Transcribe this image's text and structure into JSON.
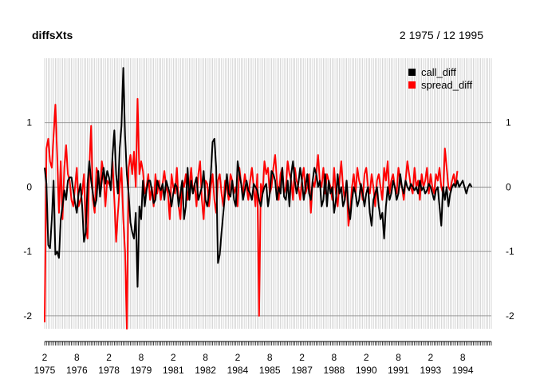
{
  "chart_data": {
    "type": "line",
    "title": "diffsXts",
    "date_range_label": "2 1975 / 12 1995",
    "xlabel": "",
    "ylabel": "",
    "x_start": "1975-02",
    "x_end": "1995-12",
    "ylim": [
      -2.2,
      2.0
    ],
    "yticks": [
      -2,
      -1,
      0,
      1
    ],
    "grid": true,
    "legend_position": "top-right",
    "colors": {
      "call_diff": "#000000",
      "spread_diff": "#ff0000",
      "grid": "#bdbdbd",
      "axis": "#808080"
    },
    "x_ticks": [
      {
        "date": "1975-02",
        "month": "2",
        "year": "1975"
      },
      {
        "date": "1976-08",
        "month": "8",
        "year": "1976"
      },
      {
        "date": "1978-02",
        "month": "2",
        "year": "1978"
      },
      {
        "date": "1979-08",
        "month": "8",
        "year": "1979"
      },
      {
        "date": "1981-02",
        "month": "2",
        "year": "1981"
      },
      {
        "date": "1982-08",
        "month": "8",
        "year": "1982"
      },
      {
        "date": "1984-02",
        "month": "2",
        "year": "1984"
      },
      {
        "date": "1985-08",
        "month": "8",
        "year": "1985"
      },
      {
        "date": "1987-02",
        "month": "2",
        "year": "1987"
      },
      {
        "date": "1988-08",
        "month": "8",
        "year": "1988"
      },
      {
        "date": "1990-02",
        "month": "2",
        "year": "1990"
      },
      {
        "date": "1991-08",
        "month": "8",
        "year": "1991"
      },
      {
        "date": "1993-02",
        "month": "2",
        "year": "1993"
      },
      {
        "date": "1994-08",
        "month": "8",
        "year": "1994"
      }
    ],
    "series": [
      {
        "name": "call_diff",
        "values": [
          0.3,
          0.05,
          -0.9,
          -0.95,
          -0.5,
          0.1,
          -1.05,
          -1.0,
          -1.1,
          -0.5,
          -0.3,
          -0.05,
          -0.2,
          0.1,
          0.15,
          0.15,
          -0.05,
          -0.25,
          -0.4,
          -0.1,
          0.05,
          -0.3,
          -0.85,
          -0.7,
          0.05,
          0.4,
          0.1,
          -0.1,
          -0.3,
          -0.2,
          0.25,
          -0.15,
          0.1,
          0.3,
          0.05,
          0.25,
          0.15,
          -0.05,
          0.5,
          0.88,
          0.2,
          -0.1,
          0.6,
          0.95,
          1.85,
          0.8,
          0.2,
          -0.1,
          -0.55,
          -0.7,
          -0.8,
          -0.4,
          -1.55,
          -0.3,
          -0.5,
          0.1,
          -0.3,
          -0.05,
          0.1,
          0.1,
          -0.05,
          -0.25,
          -0.2,
          0.1,
          0.0,
          -0.05,
          0.05,
          -0.2,
          0.1,
          0.0,
          -0.1,
          -0.3,
          -0.1,
          0.05,
          0.0,
          -0.3,
          -0.1,
          0.1,
          -0.5,
          -0.3,
          0.3,
          -0.2,
          0.1,
          -0.1,
          0.05,
          0.15,
          -0.2,
          -0.1,
          0.0,
          0.25,
          -0.2,
          -0.3,
          -0.1,
          0.2,
          0.7,
          0.75,
          0.3,
          -1.18,
          -1.05,
          -0.7,
          -0.4,
          -0.1,
          0.2,
          -0.1,
          -0.15,
          0.1,
          -0.2,
          -0.3,
          0.4,
          0.2,
          0.05,
          -0.2,
          -0.05,
          0.1,
          -0.05,
          -0.1,
          -0.2,
          0.05,
          0.0,
          -0.05,
          -0.2,
          -0.3,
          -0.1,
          0.0,
          0.05,
          -0.3,
          -0.1,
          0.25,
          0.2,
          0.1,
          -0.2,
          0.0,
          -0.1,
          0.3,
          -0.15,
          -0.2,
          0.1,
          -0.3,
          0.2,
          0.4,
          0.1,
          -0.1,
          0.05,
          0.3,
          0.1,
          -0.2,
          0.0,
          0.2,
          -0.1,
          -0.2,
          0.1,
          0.3,
          0.2,
          0.0,
          0.1,
          -0.3,
          -0.2,
          0.2,
          -0.3,
          0.1,
          -0.1,
          0.0,
          -0.4,
          -0.2,
          0.2,
          -0.1,
          0.0,
          -0.3,
          -0.2,
          0.1,
          -0.3,
          -0.5,
          -0.2,
          0.0,
          -0.1,
          -0.3,
          -0.2,
          0.05,
          -0.1,
          -0.3,
          -0.1,
          0.0,
          -0.4,
          -0.6,
          -0.2,
          -0.1,
          0.0,
          -0.3,
          -0.5,
          -0.4,
          -0.8,
          -0.3,
          0.0,
          -0.2,
          -0.1,
          0.1,
          0.0,
          -0.2,
          -0.1,
          0.2,
          0.0,
          -0.1,
          0.1,
          0.0,
          -0.05,
          0.05,
          0.0,
          -0.05,
          0.0,
          -0.1,
          0.1,
          -0.05,
          0.0,
          -0.1,
          -0.05,
          0.05,
          0.0,
          -0.1,
          -0.2,
          -0.05,
          0.0,
          -0.3,
          -0.6,
          0.0,
          -0.2,
          0.0,
          -0.3,
          -0.1,
          0.0,
          0.05,
          0.0,
          0.1,
          0.0,
          0.05,
          0.1,
          0.0,
          -0.1,
          0.0,
          0.05,
          0.0
        ],
        "color": "#000000"
      },
      {
        "name": "spread_diff",
        "values": [
          -2.1,
          0.6,
          0.75,
          0.4,
          0.3,
          0.8,
          1.28,
          0.5,
          -0.4,
          0.4,
          -0.5,
          0.3,
          0.65,
          0.2,
          0.1,
          -0.2,
          -0.3,
          0.0,
          0.3,
          -0.3,
          -0.2,
          -0.1,
          0.2,
          -0.6,
          -0.8,
          0.3,
          0.95,
          -0.2,
          -0.4,
          0.3,
          0.2,
          -0.1,
          0.4,
          0.2,
          -0.3,
          0.1,
          0.05,
          0.0,
          0.4,
          -0.2,
          -0.85,
          -0.4,
          0.0,
          0.3,
          -0.5,
          -1.0,
          -2.2,
          0.3,
          0.5,
          0.2,
          0.55,
          0.0,
          1.37,
          0.2,
          0.4,
          0.25,
          -0.1,
          0.0,
          0.2,
          -0.2,
          0.0,
          -0.3,
          0.2,
          -0.1,
          0.1,
          -0.2,
          0.05,
          0.25,
          0.0,
          -0.1,
          -0.5,
          0.2,
          0.0,
          -0.1,
          0.3,
          -0.3,
          -0.5,
          0.1,
          0.0,
          0.2,
          -0.2,
          0.0,
          0.3,
          -0.1,
          0.05,
          -0.3,
          0.2,
          0.4,
          -0.2,
          -0.5,
          0.1,
          0.05,
          -0.3,
          0.0,
          0.2,
          -0.2,
          -0.4,
          0.1,
          0.2,
          -0.1,
          -0.3,
          0.1,
          0.0,
          -0.2,
          0.2,
          0.1,
          -0.1,
          0.0,
          -0.3,
          0.3,
          0.05,
          -0.1,
          0.2,
          0.0,
          -0.2,
          0.1,
          0.3,
          0.0,
          -0.3,
          0.2,
          -2.0,
          0.05,
          -0.1,
          0.4,
          0.2,
          0.3,
          -0.1,
          0.0,
          0.3,
          0.5,
          0.1,
          -0.2,
          0.2,
          0.3,
          -0.1,
          0.0,
          0.4,
          0.2,
          0.1,
          -0.2,
          0.3,
          0.1,
          0.0,
          -0.2,
          0.1,
          0.3,
          -0.1,
          0.0,
          0.2,
          -0.4,
          0.1,
          0.0,
          0.2,
          0.5,
          0.1,
          0.0,
          0.3,
          -0.1,
          0.2,
          0.1,
          0.0,
          -0.2,
          0.3,
          -0.1,
          -0.3,
          0.1,
          0.4,
          0.0,
          -0.2,
          0.1,
          -0.6,
          -0.4,
          0.0,
          0.2,
          -0.1,
          0.3,
          0.1,
          0.0,
          -0.2,
          0.2,
          0.3,
          0.0,
          -0.1,
          0.2,
          0.0,
          -0.3,
          0.1,
          0.2,
          0.0,
          -0.2,
          0.3,
          0.1,
          0.4,
          -0.1,
          0.1,
          0.2,
          0.0,
          -0.1,
          0.3,
          0.1,
          0.0,
          -0.2,
          0.1,
          0.4,
          0.2,
          0.0,
          -0.1,
          0.3,
          0.0,
          0.1,
          -0.2,
          0.2,
          0.0,
          0.1,
          0.3,
          -0.1,
          0.2,
          0.0,
          -0.1,
          0.2,
          0.1,
          0.3,
          0.0,
          -0.1,
          0.6,
          0.3,
          0.0,
          -0.05,
          0.1,
          0.2,
          0.0,
          0.25
        ],
        "color": "#ff0000"
      }
    ]
  }
}
